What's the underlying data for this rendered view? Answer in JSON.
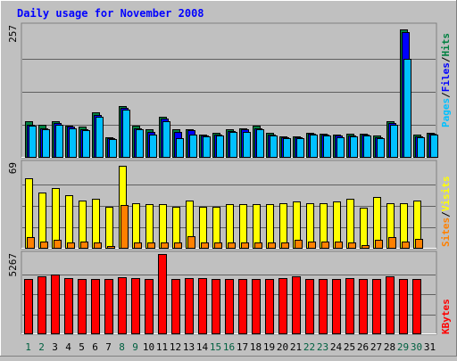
{
  "chart_data": {
    "type": "bar",
    "title": "Daily usage for November 2008",
    "categories": [
      "1",
      "2",
      "3",
      "4",
      "5",
      "6",
      "7",
      "8",
      "9",
      "10",
      "11",
      "12",
      "13",
      "14",
      "15",
      "16",
      "17",
      "18",
      "19",
      "20",
      "21",
      "22",
      "23",
      "24",
      "25",
      "26",
      "27",
      "28",
      "29",
      "30",
      "31"
    ],
    "weekend_days": [
      "1",
      "2",
      "8",
      "9",
      "15",
      "16",
      "22",
      "23",
      "29",
      "30"
    ],
    "panels": [
      {
        "id": "hits-files-pages",
        "max_label": "257",
        "ymax": 257,
        "legend": [
          {
            "label": "Pages",
            "color": "#00c0ff"
          },
          {
            "label": "Files",
            "color": "#0000ff"
          },
          {
            "label": "Hits",
            "color": "#008040"
          }
        ],
        "series": [
          {
            "name": "Hits",
            "color": "#008040",
            "values": [
              72,
              64,
              71,
              63,
              60,
              88,
              40,
              101,
              62,
              55,
              80,
              55,
              56,
              45,
              48,
              55,
              58,
              62,
              48,
              42,
              41,
              49,
              47,
              45,
              47,
              47,
              43,
              72,
              250,
              45,
              49
            ]
          },
          {
            "name": "Files",
            "color": "#0000ff",
            "values": [
              64,
              57,
              67,
              60,
              56,
              84,
              38,
              97,
              58,
              50,
              76,
              50,
              53,
              43,
              45,
              52,
              55,
              57,
              45,
              40,
              40,
              47,
              45,
              43,
              44,
              45,
              40,
              67,
              245,
              42,
              47
            ]
          },
          {
            "name": "Pages",
            "color": "#00c0ff",
            "values": [
              62,
              55,
              64,
              57,
              54,
              80,
              36,
              93,
              55,
              46,
              72,
              38,
              46,
              42,
              43,
              50,
              50,
              56,
              43,
              39,
              38,
              45,
              43,
              40,
              42,
              43,
              38,
              64,
              193,
              40,
              46
            ]
          }
        ]
      },
      {
        "id": "visits-sites",
        "max_label": "69",
        "ymax": 69,
        "legend": [
          {
            "label": "Sites",
            "color": "#ff8000"
          },
          {
            "label": "Visits",
            "color": "#ffff00"
          }
        ],
        "series": [
          {
            "name": "Visits",
            "color": "#ffff00",
            "values": [
              57,
              45,
              49,
              43,
              39,
              40,
              34,
              67,
              37,
              36,
              36,
              34,
              39,
              34,
              34,
              36,
              36,
              36,
              36,
              37,
              38,
              37,
              37,
              38,
              40,
              33,
              42,
              37,
              37,
              39,
              0
            ]
          },
          {
            "name": "Sites",
            "color": "#ff8000",
            "values": [
              9,
              6,
              7,
              5,
              6,
              5,
              2,
              35,
              5,
              5,
              5,
              5,
              10,
              5,
              5,
              5,
              5,
              5,
              5,
              5,
              7,
              6,
              6,
              6,
              5,
              3,
              7,
              9,
              6,
              8,
              0
            ]
          }
        ]
      },
      {
        "id": "kbytes",
        "max_label": "5267",
        "ymax": 5267,
        "legend": [
          {
            "label": "KBytes",
            "color": "#ff0000"
          }
        ],
        "series": [
          {
            "name": "KBytes",
            "color": "#ff0000",
            "values": [
              3650,
              3780,
              3930,
              3710,
              3620,
              3650,
              3610,
              3750,
              3710,
              3650,
              5267,
              3620,
              3680,
              3680,
              3650,
              3610,
              3640,
              3620,
              3610,
              3680,
              3790,
              3610,
              3610,
              3640,
              3680,
              3610,
              3640,
              3810,
              3650,
              3610,
              0
            ]
          }
        ]
      }
    ]
  },
  "colors": {
    "background": "#c0c0c0",
    "title": "#0000ff",
    "gridline": "#606060",
    "weekday_label": "#000000",
    "weekend_label": "#006040"
  }
}
